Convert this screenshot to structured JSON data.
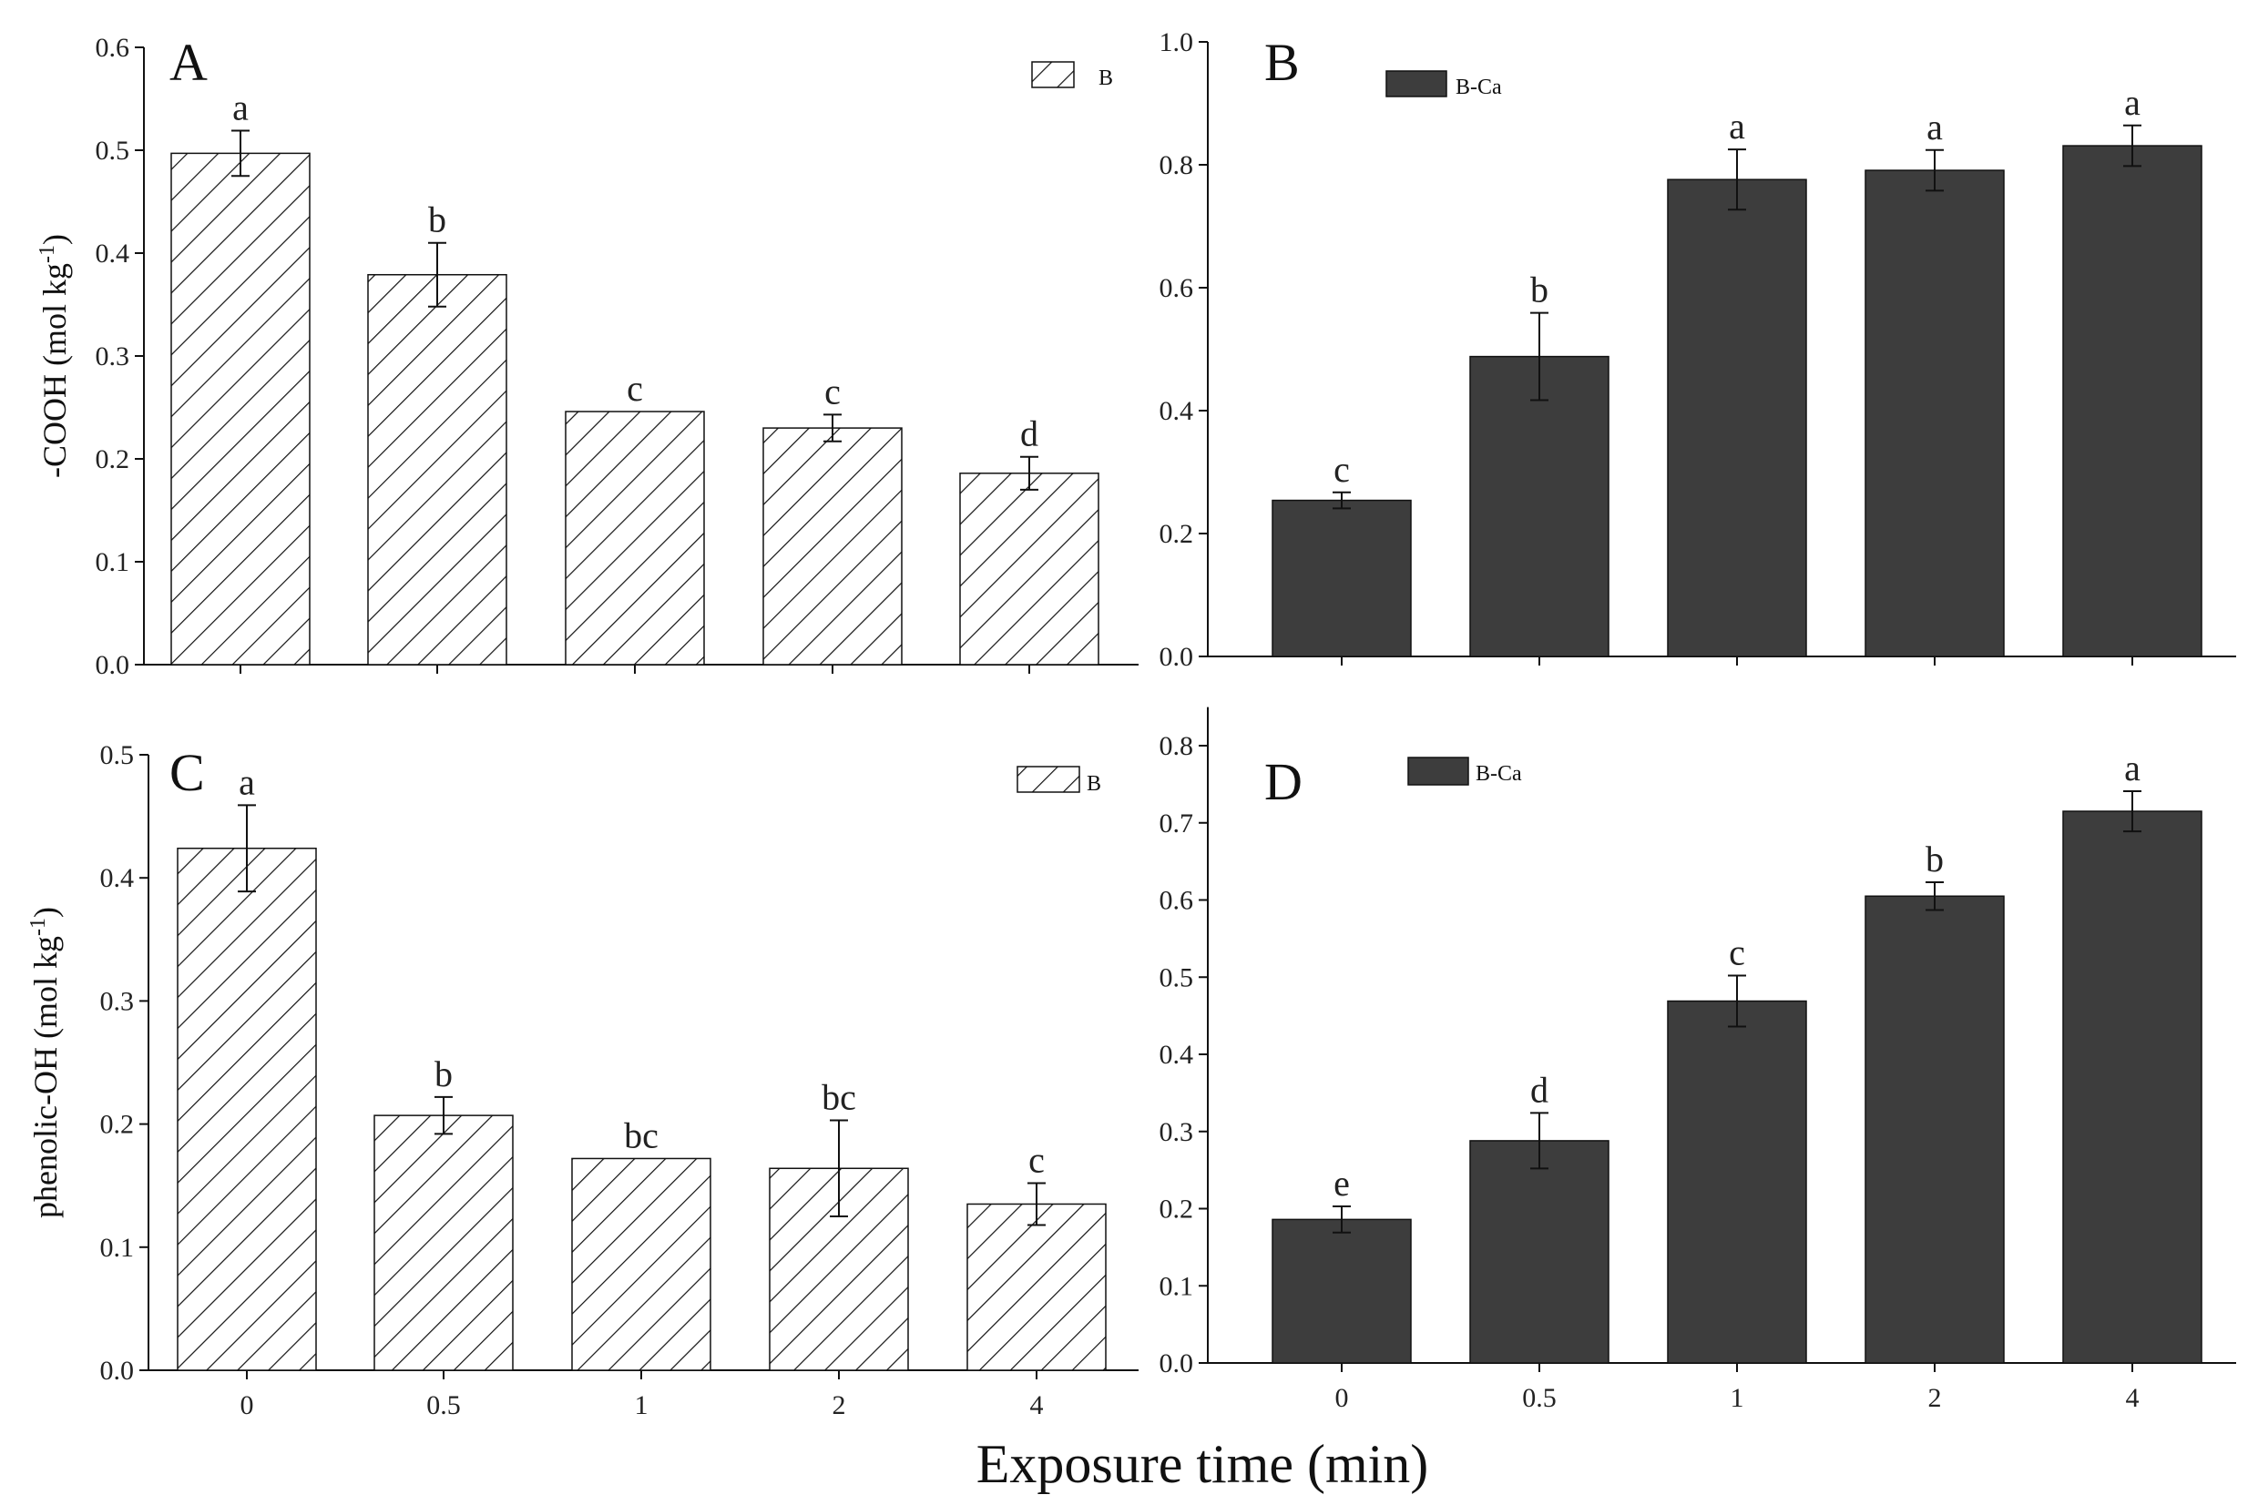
{
  "xlabel": "Exposure time (min)",
  "chart_data": [
    {
      "type": "bar",
      "panel": "A",
      "categories": [
        "0",
        "0.5",
        "1",
        "2",
        "4"
      ],
      "series": [
        {
          "name": "B",
          "values": [
            0.497,
            0.379,
            0.246,
            0.23,
            0.186
          ],
          "errors": [
            0.022,
            0.031,
            0.0,
            0.013,
            0.016
          ],
          "letters": [
            "a",
            "b",
            "c",
            "c",
            "d"
          ]
        }
      ],
      "fill": "hatched",
      "ylabel": "-COOH (mol kg-1)",
      "ylim": [
        0,
        0.6
      ],
      "yticks": [
        "0.0",
        "0.1",
        "0.2",
        "0.3",
        "0.4",
        "0.5",
        "0.6"
      ],
      "legend_position": "top-right"
    },
    {
      "type": "bar",
      "panel": "B",
      "categories": [
        "0",
        "0.5",
        "1",
        "2",
        "4"
      ],
      "series": [
        {
          "name": "B-Ca",
          "values": [
            0.254,
            0.488,
            0.776,
            0.791,
            0.831
          ],
          "errors": [
            0.013,
            0.071,
            0.049,
            0.033,
            0.033
          ],
          "letters": [
            "c",
            "b",
            "a",
            "a",
            "a"
          ]
        }
      ],
      "fill": "#3d3d3d",
      "ylabel": "",
      "ylim": [
        0,
        1.0
      ],
      "yticks": [
        "0.0",
        "0.2",
        "0.4",
        "0.6",
        "0.8",
        "1.0"
      ],
      "legend_position": "top-left"
    },
    {
      "type": "bar",
      "panel": "C",
      "categories": [
        "0",
        "0.5",
        "1",
        "2",
        "4"
      ],
      "series": [
        {
          "name": "B",
          "values": [
            0.424,
            0.207,
            0.172,
            0.164,
            0.135
          ],
          "errors": [
            0.035,
            0.015,
            0.0,
            0.039,
            0.017
          ],
          "letters": [
            "a",
            "b",
            "bc",
            "bc",
            "c"
          ]
        }
      ],
      "fill": "hatched",
      "ylabel": "phenolic-OH (mol kg-1)",
      "ylim": [
        0,
        0.5
      ],
      "yticks": [
        "0.0",
        "0.1",
        "0.2",
        "0.3",
        "0.4",
        "0.5"
      ],
      "legend_position": "top-right"
    },
    {
      "type": "bar",
      "panel": "D",
      "categories": [
        "0",
        "0.5",
        "1",
        "2",
        "4"
      ],
      "series": [
        {
          "name": "B-Ca",
          "values": [
            0.186,
            0.288,
            0.469,
            0.605,
            0.715
          ],
          "errors": [
            0.017,
            0.036,
            0.033,
            0.018,
            0.026
          ],
          "letters": [
            "e",
            "d",
            "c",
            "b",
            "a"
          ]
        }
      ],
      "fill": "#3d3d3d",
      "ylabel": "",
      "ylim": [
        0,
        0.85
      ],
      "yticks": [
        "0.0",
        "0.1",
        "0.2",
        "0.3",
        "0.4",
        "0.5",
        "0.6",
        "0.7",
        "0.8"
      ],
      "legend_position": "top-left"
    }
  ]
}
